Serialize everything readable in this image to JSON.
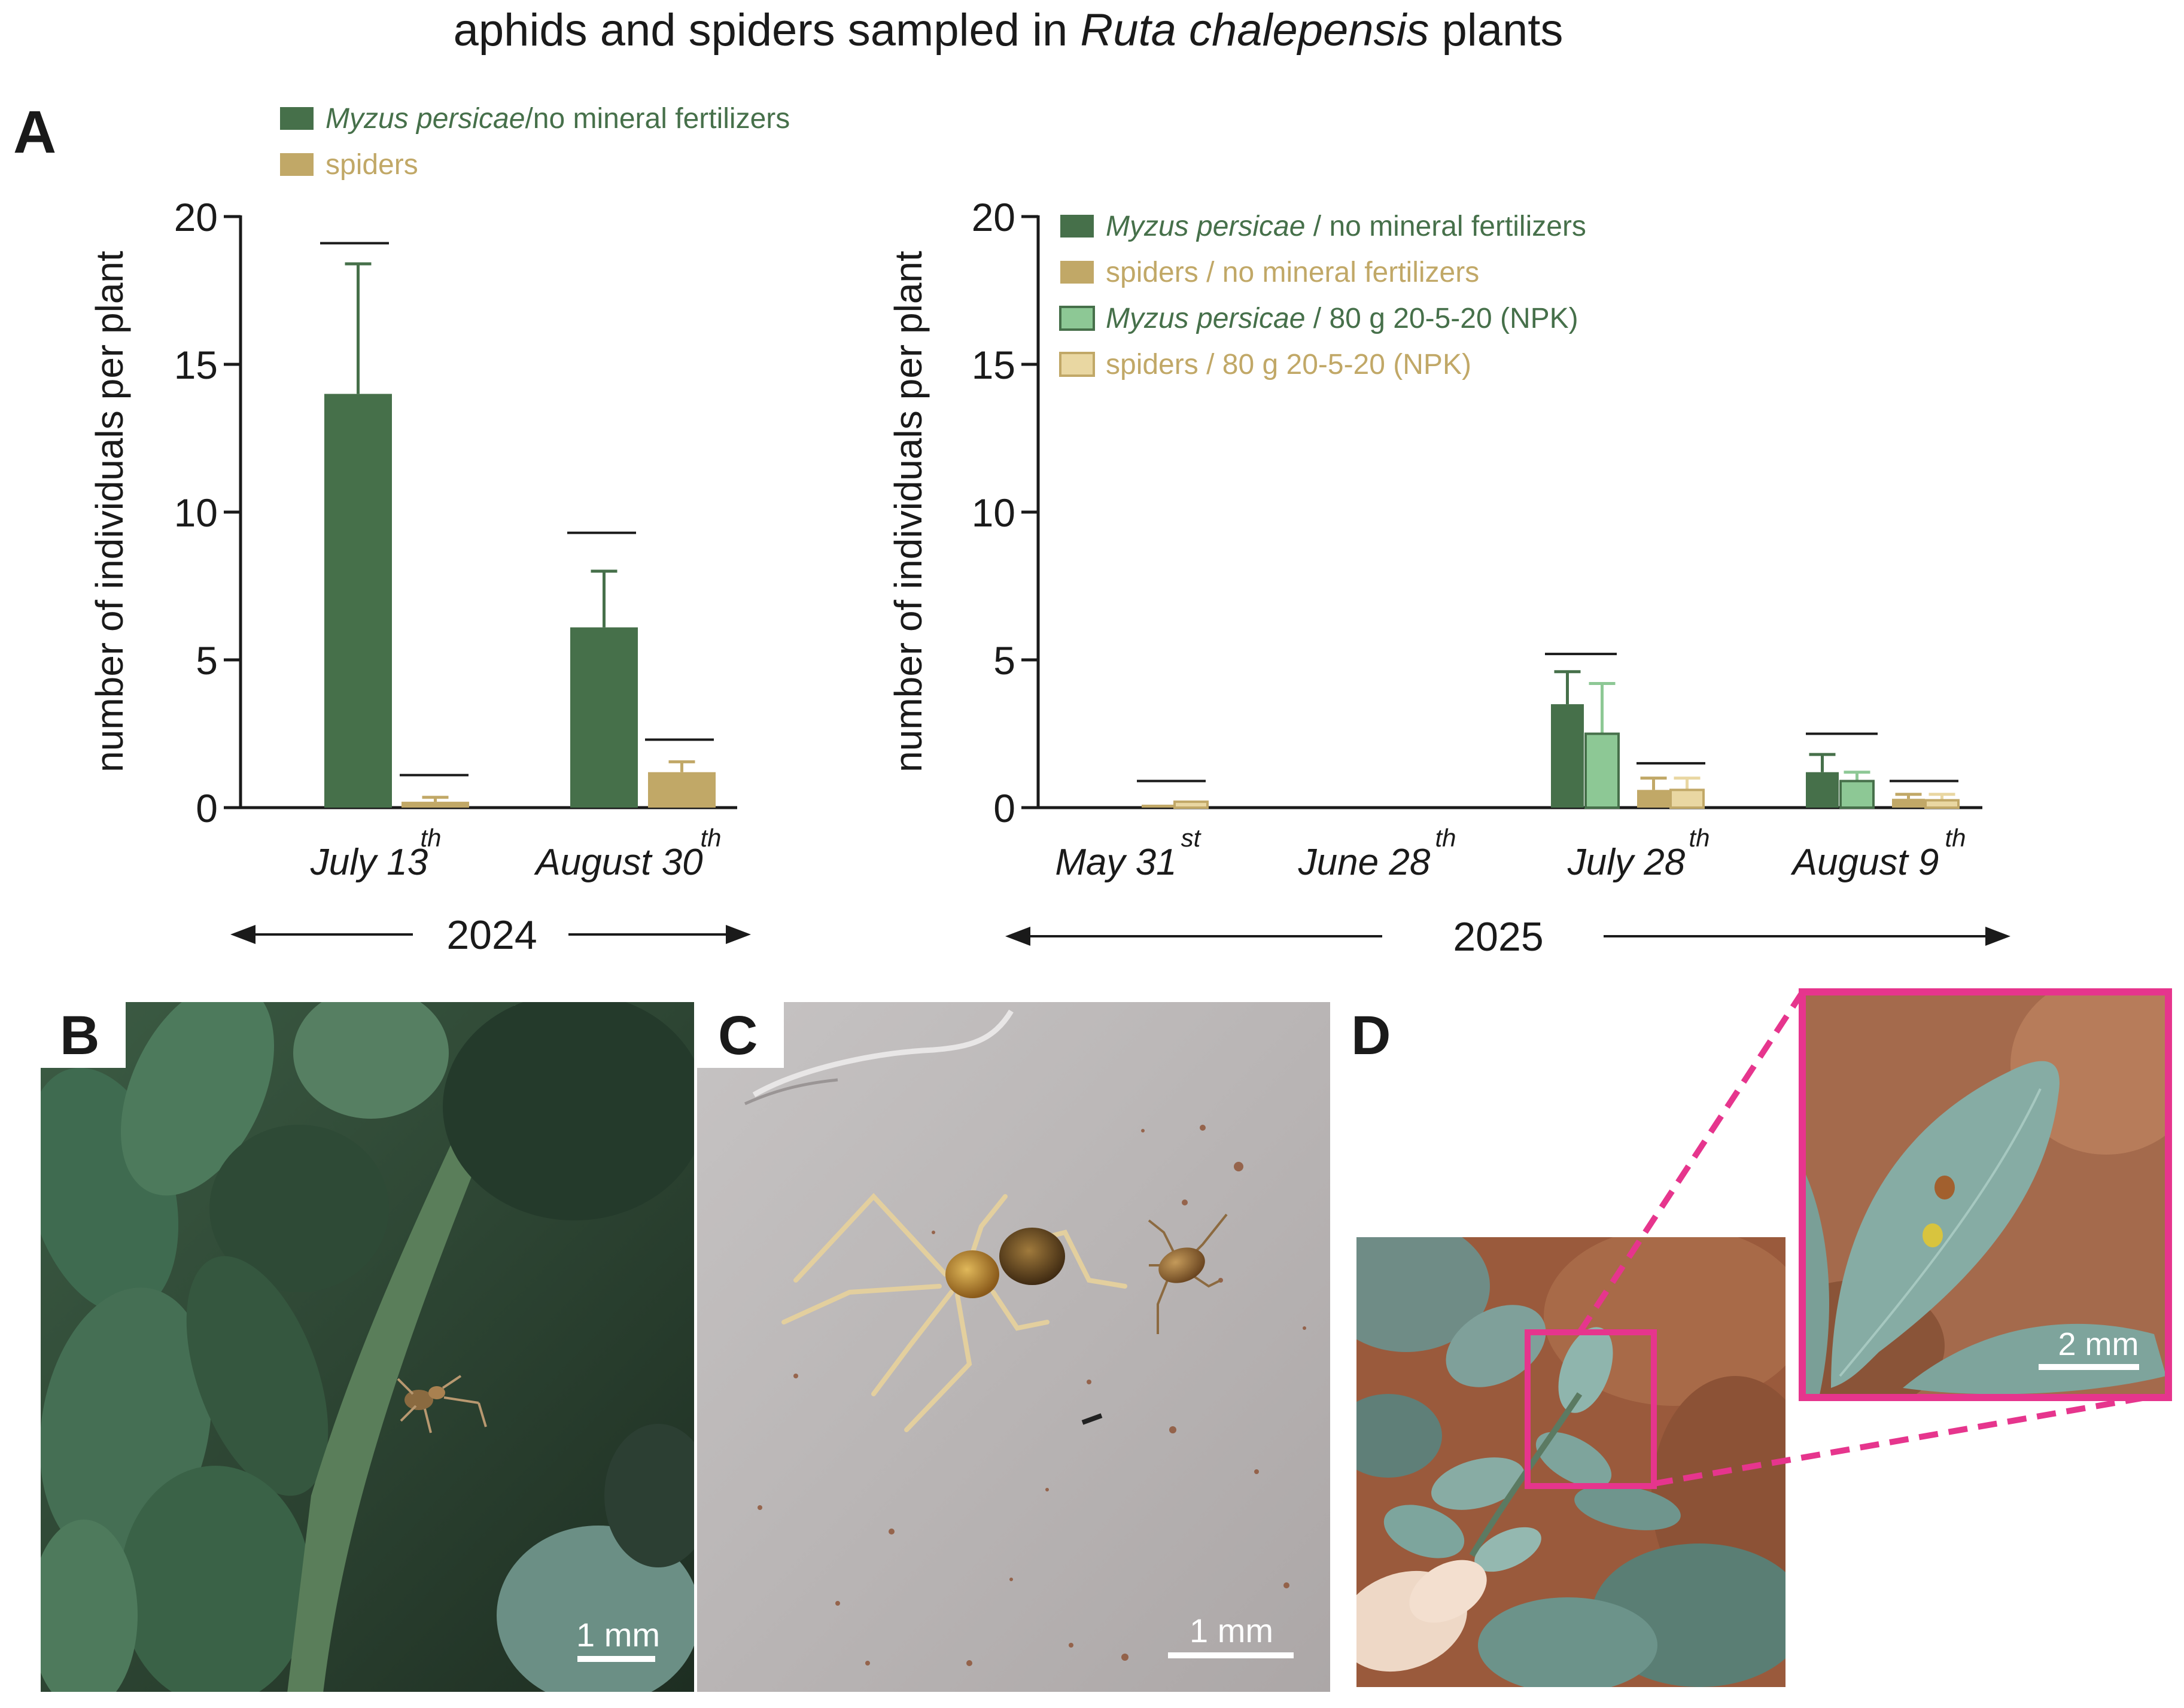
{
  "figure": {
    "title_pre": "aphids and spiders sampled in ",
    "title_italic": "Ruta chalepensis",
    "title_post": " plants",
    "panel_labels": {
      "a": "A",
      "b": "B",
      "c": "C",
      "d": "D"
    },
    "scale_bars": {
      "b": "1 mm",
      "c": "1 mm",
      "d": "2 mm"
    }
  },
  "colors": {
    "aphid_dark": "#46704a",
    "spider_dark": "#c1a867",
    "aphid_light": "#8dc895",
    "spider_light": "#e9d7a2",
    "magenta": "#e6358d",
    "text": "#1a1a1a"
  },
  "chart_data": [
    {
      "type": "bar",
      "panel": "A-left",
      "ylabel": "number of individuals per plant",
      "ylim": [
        0,
        20
      ],
      "yticks": [
        0,
        5,
        10,
        15,
        20
      ],
      "categories": [
        {
          "main": "July 13",
          "sup": "th"
        },
        {
          "main": "August 30",
          "sup": "th"
        }
      ],
      "year_label": "2024",
      "legend": [
        {
          "italic": "Myzus persicae",
          "plain": "/no mineral fertilizers",
          "color_key": "aphid_dark"
        },
        {
          "italic": "",
          "plain": "spiders",
          "color_key": "spider_dark"
        }
      ],
      "series": [
        {
          "name": "Myzus persicae/no mineral fertilizers",
          "color_key": "aphid_dark",
          "values": [
            14.0,
            6.1
          ],
          "errors": [
            4.4,
            1.9
          ]
        },
        {
          "name": "spiders",
          "color_key": "spider_dark",
          "values": [
            0.2,
            1.2
          ],
          "errors": [
            0.15,
            0.35
          ]
        }
      ],
      "significance_lines": [
        19.1,
        1.1,
        9.3,
        2.3
      ]
    },
    {
      "type": "bar",
      "panel": "A-right",
      "ylabel": "number of individuals per plant",
      "ylim": [
        0,
        20
      ],
      "yticks": [
        0,
        5,
        10,
        15,
        20
      ],
      "categories": [
        {
          "main": "May 31",
          "sup": "st"
        },
        {
          "main": "June 28",
          "sup": "th"
        },
        {
          "main": "July 28",
          "sup": "th"
        },
        {
          "main": "August 9",
          "sup": "th"
        }
      ],
      "year_label": "2025",
      "legend": [
        {
          "italic": "Myzus persicae",
          "plain": " / no mineral fertilizers",
          "color_key": "aphid_dark"
        },
        {
          "italic": "",
          "plain": "spiders / no mineral fertilizers",
          "color_key": "spider_dark"
        },
        {
          "italic": "Myzus persicae",
          "plain": " / 80 g 20-5-20 (NPK)",
          "color_key": "aphid_light"
        },
        {
          "italic": "",
          "plain": "spiders / 80 g 20-5-20 (NPK)",
          "color_key": "spider_light"
        }
      ],
      "series": [
        {
          "name": "Myzus persicae / no mineral fertilizers",
          "color_key": "aphid_dark",
          "values": [
            0,
            0,
            3.5,
            1.2
          ],
          "errors": [
            0,
            0,
            1.1,
            0.6
          ]
        },
        {
          "name": "Myzus persicae / 80 g 20-5-20 (NPK)",
          "color_key": "aphid_light",
          "values": [
            0,
            0,
            2.5,
            0.9
          ],
          "errors": [
            0,
            0,
            1.7,
            0.3
          ]
        },
        {
          "name": "spiders / no mineral fertilizers",
          "color_key": "spider_dark",
          "values": [
            0.1,
            0,
            0.6,
            0.3
          ],
          "errors": [
            0,
            0,
            0.4,
            0.15
          ]
        },
        {
          "name": "spiders / 80 g 20-5-20 (NPK)",
          "color_key": "spider_light",
          "values": [
            0.2,
            0,
            0.6,
            0.25
          ],
          "errors": [
            0,
            0,
            0.4,
            0.2
          ]
        }
      ],
      "significance_lines": [
        0.9,
        5.2,
        1.5,
        2.5,
        0.9
      ]
    }
  ]
}
